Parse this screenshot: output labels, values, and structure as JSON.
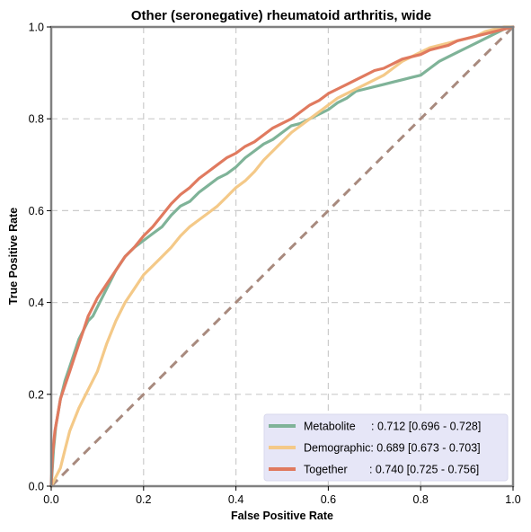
{
  "chart_data": {
    "type": "line",
    "title": "Other (seronegative) rheumatoid arthritis, wide",
    "xlabel": "False Positive Rate",
    "ylabel": "True Positive Rate",
    "xlim": [
      0,
      1
    ],
    "ylim": [
      0,
      1
    ],
    "xticks": [
      "0.0",
      "0.2",
      "0.4",
      "0.6",
      "0.8",
      "1.0"
    ],
    "yticks": [
      "0.0",
      "0.2",
      "0.4",
      "0.6",
      "0.8",
      "1.0"
    ],
    "grid": true,
    "legend_position": "lower-right",
    "series": [
      {
        "name": "Metabolite",
        "legend_label": "Metabolite     : 0.712 [0.696 - 0.728]",
        "color": "#7fb398",
        "points": [
          [
            0,
            0
          ],
          [
            0.005,
            0.08
          ],
          [
            0.01,
            0.13
          ],
          [
            0.02,
            0.19
          ],
          [
            0.03,
            0.23
          ],
          [
            0.04,
            0.26
          ],
          [
            0.05,
            0.29
          ],
          [
            0.06,
            0.32
          ],
          [
            0.07,
            0.34
          ],
          [
            0.08,
            0.36
          ],
          [
            0.09,
            0.37
          ],
          [
            0.1,
            0.39
          ],
          [
            0.12,
            0.43
          ],
          [
            0.14,
            0.47
          ],
          [
            0.16,
            0.5
          ],
          [
            0.18,
            0.52
          ],
          [
            0.2,
            0.535
          ],
          [
            0.22,
            0.55
          ],
          [
            0.24,
            0.565
          ],
          [
            0.26,
            0.59
          ],
          [
            0.28,
            0.61
          ],
          [
            0.3,
            0.62
          ],
          [
            0.32,
            0.64
          ],
          [
            0.34,
            0.655
          ],
          [
            0.36,
            0.67
          ],
          [
            0.38,
            0.68
          ],
          [
            0.4,
            0.695
          ],
          [
            0.42,
            0.715
          ],
          [
            0.44,
            0.73
          ],
          [
            0.46,
            0.745
          ],
          [
            0.48,
            0.755
          ],
          [
            0.5,
            0.77
          ],
          [
            0.52,
            0.785
          ],
          [
            0.54,
            0.79
          ],
          [
            0.56,
            0.8
          ],
          [
            0.58,
            0.81
          ],
          [
            0.6,
            0.82
          ],
          [
            0.62,
            0.835
          ],
          [
            0.64,
            0.845
          ],
          [
            0.66,
            0.86
          ],
          [
            0.68,
            0.865
          ],
          [
            0.7,
            0.87
          ],
          [
            0.72,
            0.875
          ],
          [
            0.74,
            0.88
          ],
          [
            0.76,
            0.885
          ],
          [
            0.78,
            0.89
          ],
          [
            0.8,
            0.895
          ],
          [
            0.82,
            0.91
          ],
          [
            0.84,
            0.925
          ],
          [
            0.86,
            0.935
          ],
          [
            0.88,
            0.945
          ],
          [
            0.9,
            0.955
          ],
          [
            0.92,
            0.965
          ],
          [
            0.94,
            0.975
          ],
          [
            0.96,
            0.985
          ],
          [
            0.98,
            0.995
          ],
          [
            1.0,
            1.0
          ]
        ]
      },
      {
        "name": "Demographic",
        "legend_label": "Demographic: 0.689 [0.673 - 0.703]",
        "color": "#f4c988",
        "points": [
          [
            0,
            0
          ],
          [
            0.01,
            0.02
          ],
          [
            0.02,
            0.04
          ],
          [
            0.03,
            0.08
          ],
          [
            0.04,
            0.12
          ],
          [
            0.06,
            0.17
          ],
          [
            0.08,
            0.21
          ],
          [
            0.1,
            0.25
          ],
          [
            0.12,
            0.31
          ],
          [
            0.14,
            0.36
          ],
          [
            0.16,
            0.4
          ],
          [
            0.18,
            0.43
          ],
          [
            0.2,
            0.46
          ],
          [
            0.22,
            0.48
          ],
          [
            0.24,
            0.5
          ],
          [
            0.26,
            0.52
          ],
          [
            0.28,
            0.545
          ],
          [
            0.3,
            0.565
          ],
          [
            0.32,
            0.58
          ],
          [
            0.34,
            0.595
          ],
          [
            0.36,
            0.61
          ],
          [
            0.38,
            0.63
          ],
          [
            0.4,
            0.65
          ],
          [
            0.42,
            0.665
          ],
          [
            0.44,
            0.685
          ],
          [
            0.46,
            0.71
          ],
          [
            0.48,
            0.73
          ],
          [
            0.5,
            0.75
          ],
          [
            0.52,
            0.77
          ],
          [
            0.54,
            0.785
          ],
          [
            0.56,
            0.8
          ],
          [
            0.58,
            0.815
          ],
          [
            0.6,
            0.83
          ],
          [
            0.62,
            0.845
          ],
          [
            0.64,
            0.855
          ],
          [
            0.66,
            0.865
          ],
          [
            0.68,
            0.875
          ],
          [
            0.7,
            0.885
          ],
          [
            0.72,
            0.895
          ],
          [
            0.74,
            0.91
          ],
          [
            0.76,
            0.925
          ],
          [
            0.78,
            0.935
          ],
          [
            0.8,
            0.945
          ],
          [
            0.82,
            0.955
          ],
          [
            0.84,
            0.96
          ],
          [
            0.86,
            0.965
          ],
          [
            0.88,
            0.97
          ],
          [
            0.9,
            0.975
          ],
          [
            0.92,
            0.98
          ],
          [
            0.94,
            0.99
          ],
          [
            0.96,
            0.995
          ],
          [
            0.98,
            1.0
          ],
          [
            1.0,
            1.0
          ]
        ]
      },
      {
        "name": "Together",
        "legend_label": "Together       : 0.740 [0.725 - 0.756]",
        "color": "#e07a5f",
        "points": [
          [
            0,
            0
          ],
          [
            0.003,
            0.07
          ],
          [
            0.008,
            0.12
          ],
          [
            0.015,
            0.16
          ],
          [
            0.02,
            0.19
          ],
          [
            0.03,
            0.22
          ],
          [
            0.04,
            0.25
          ],
          [
            0.05,
            0.28
          ],
          [
            0.06,
            0.31
          ],
          [
            0.07,
            0.34
          ],
          [
            0.08,
            0.37
          ],
          [
            0.09,
            0.39
          ],
          [
            0.1,
            0.41
          ],
          [
            0.12,
            0.44
          ],
          [
            0.14,
            0.47
          ],
          [
            0.16,
            0.5
          ],
          [
            0.18,
            0.52
          ],
          [
            0.2,
            0.545
          ],
          [
            0.22,
            0.565
          ],
          [
            0.24,
            0.59
          ],
          [
            0.26,
            0.615
          ],
          [
            0.28,
            0.635
          ],
          [
            0.3,
            0.65
          ],
          [
            0.32,
            0.67
          ],
          [
            0.34,
            0.685
          ],
          [
            0.36,
            0.7
          ],
          [
            0.38,
            0.715
          ],
          [
            0.4,
            0.725
          ],
          [
            0.42,
            0.74
          ],
          [
            0.44,
            0.75
          ],
          [
            0.46,
            0.765
          ],
          [
            0.48,
            0.78
          ],
          [
            0.5,
            0.79
          ],
          [
            0.52,
            0.8
          ],
          [
            0.54,
            0.815
          ],
          [
            0.56,
            0.83
          ],
          [
            0.58,
            0.84
          ],
          [
            0.6,
            0.855
          ],
          [
            0.62,
            0.865
          ],
          [
            0.64,
            0.875
          ],
          [
            0.66,
            0.885
          ],
          [
            0.68,
            0.895
          ],
          [
            0.7,
            0.905
          ],
          [
            0.72,
            0.91
          ],
          [
            0.74,
            0.92
          ],
          [
            0.76,
            0.93
          ],
          [
            0.78,
            0.935
          ],
          [
            0.8,
            0.94
          ],
          [
            0.82,
            0.95
          ],
          [
            0.84,
            0.955
          ],
          [
            0.86,
            0.96
          ],
          [
            0.88,
            0.97
          ],
          [
            0.9,
            0.975
          ],
          [
            0.92,
            0.98
          ],
          [
            0.94,
            0.985
          ],
          [
            0.96,
            0.99
          ],
          [
            0.98,
            0.995
          ],
          [
            1.0,
            1.0
          ]
        ]
      }
    ],
    "reference_line": {
      "name": "chance",
      "color": "#a88a7e",
      "points": [
        [
          0,
          0
        ],
        [
          1,
          1
        ]
      ]
    },
    "legend_background": "#e6e6f7",
    "grid_color": "#cccccc",
    "frame_color": "#808080"
  }
}
